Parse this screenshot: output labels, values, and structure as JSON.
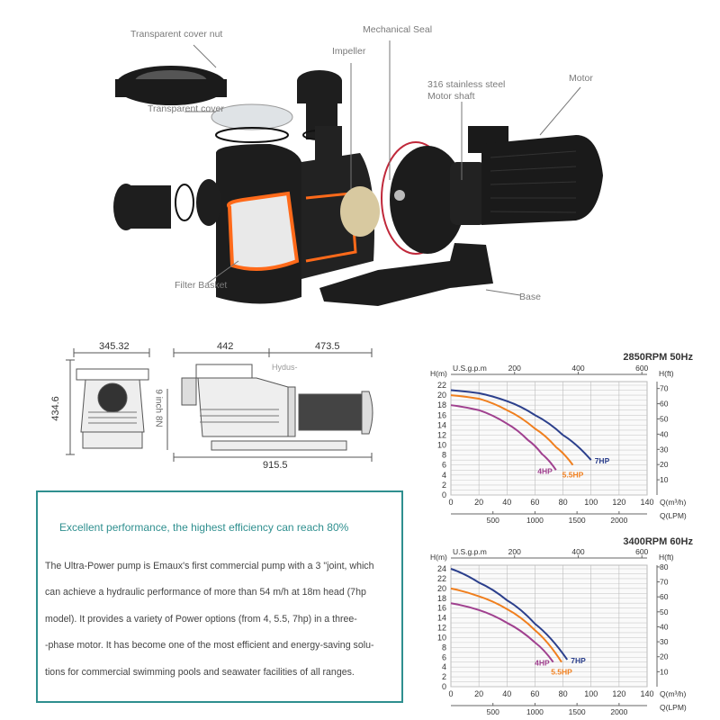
{
  "exploded_view": {
    "labels": {
      "cover_nut": "Transparent cover nut",
      "mechanical_seal": "Mechanical Seal",
      "impeller": "Impeller",
      "shaft_line1": "316 stainless steel",
      "shaft_line2": "Motor shaft",
      "motor": "Motor",
      "cover": "Transparent cover",
      "filter_basket": "Filter Basket",
      "base": "Base"
    }
  },
  "dimensions": {
    "front_width": "345.32",
    "pump_length": "442",
    "motor_length": "473.5",
    "height": "434.6",
    "inlet": "9 inch 8N",
    "total_length": "915.5",
    "watermark": "Hydus-"
  },
  "description": {
    "heading": "Excellent performance, the highest efficiency can reach 80%",
    "lines": [
      "The Ultra-Power pump is Emaux's first commercial pump with a 3 \"joint, which",
      "can achieve a hydraulic performance of more than 54 m/h at 18m head (7hp",
      "model). It provides a variety of Power options (from 4, 5.5, 7hp) in a three-",
      "-phase motor. It has become one of the most efficient and energy-saving solu-",
      "tions for commercial swimming pools and seawater facilities of all ranges."
    ]
  },
  "chart_data": [
    {
      "type": "line",
      "title": "2850RPM  50Hz",
      "xlabel": "Q(m³/h)",
      "ylabel": "H(m)",
      "y2label": "H(ft)",
      "x2label_top": "U.S.g.p.m",
      "x3label_bottom": "Q(LPM)",
      "xlim": [
        0,
        140
      ],
      "ylim": [
        0,
        22
      ],
      "xticks": [
        0,
        20,
        40,
        60,
        80,
        100,
        120,
        140
      ],
      "yticks": [
        0,
        2,
        4,
        6,
        8,
        10,
        12,
        14,
        16,
        18,
        20,
        22
      ],
      "ft_ticks": [
        10,
        20,
        30,
        40,
        50,
        60,
        70
      ],
      "gpm_ticks": [
        200,
        400,
        600
      ],
      "lpm_ticks": [
        500,
        1000,
        1500,
        2000
      ],
      "grid": true,
      "series": [
        {
          "name": "7HP",
          "color": "#2b3f8c",
          "x": [
            0,
            20,
            40,
            60,
            80,
            100
          ],
          "y": [
            21,
            20.4,
            18.8,
            16,
            12,
            7
          ]
        },
        {
          "name": "5.5HP",
          "color": "#f07f1e",
          "x": [
            0,
            20,
            40,
            60,
            75,
            87
          ],
          "y": [
            20,
            19.3,
            17,
            13.3,
            9.6,
            6
          ]
        },
        {
          "name": "4HP",
          "color": "#a0408f",
          "x": [
            0,
            20,
            40,
            55,
            65,
            75
          ],
          "y": [
            18,
            17,
            14.3,
            11,
            8.2,
            5
          ]
        }
      ]
    },
    {
      "type": "line",
      "title": "3400RPM  60Hz",
      "xlabel": "Q(m³/h)",
      "ylabel": "H(m)",
      "y2label": "H(ft)",
      "x2label_top": "U.S.g.p.m",
      "x3label_bottom": "Q(LPM)",
      "xlim": [
        0,
        140
      ],
      "ylim": [
        0,
        24
      ],
      "xticks": [
        0,
        20,
        40,
        60,
        80,
        100,
        120,
        140
      ],
      "yticks": [
        0,
        2,
        4,
        6,
        8,
        10,
        12,
        14,
        16,
        18,
        20,
        22,
        24
      ],
      "ft_ticks": [
        10,
        20,
        30,
        40,
        50,
        60,
        70,
        80
      ],
      "gpm_ticks": [
        200,
        400,
        600
      ],
      "lpm_ticks": [
        500,
        1000,
        1500,
        2000
      ],
      "grid": true,
      "series": [
        {
          "name": "7HP",
          "color": "#2b3f8c",
          "x": [
            0,
            20,
            40,
            60,
            83
          ],
          "y": [
            24,
            21.2,
            17.6,
            12.8,
            5.5
          ]
        },
        {
          "name": "5.5HP",
          "color": "#f07f1e",
          "x": [
            0,
            20,
            40,
            60,
            79
          ],
          "y": [
            20,
            18.4,
            15.8,
            11.5,
            5
          ]
        },
        {
          "name": "4HP",
          "color": "#a0408f",
          "x": [
            0,
            20,
            40,
            60,
            73
          ],
          "y": [
            17,
            15.6,
            13,
            9,
            5
          ]
        }
      ]
    }
  ]
}
